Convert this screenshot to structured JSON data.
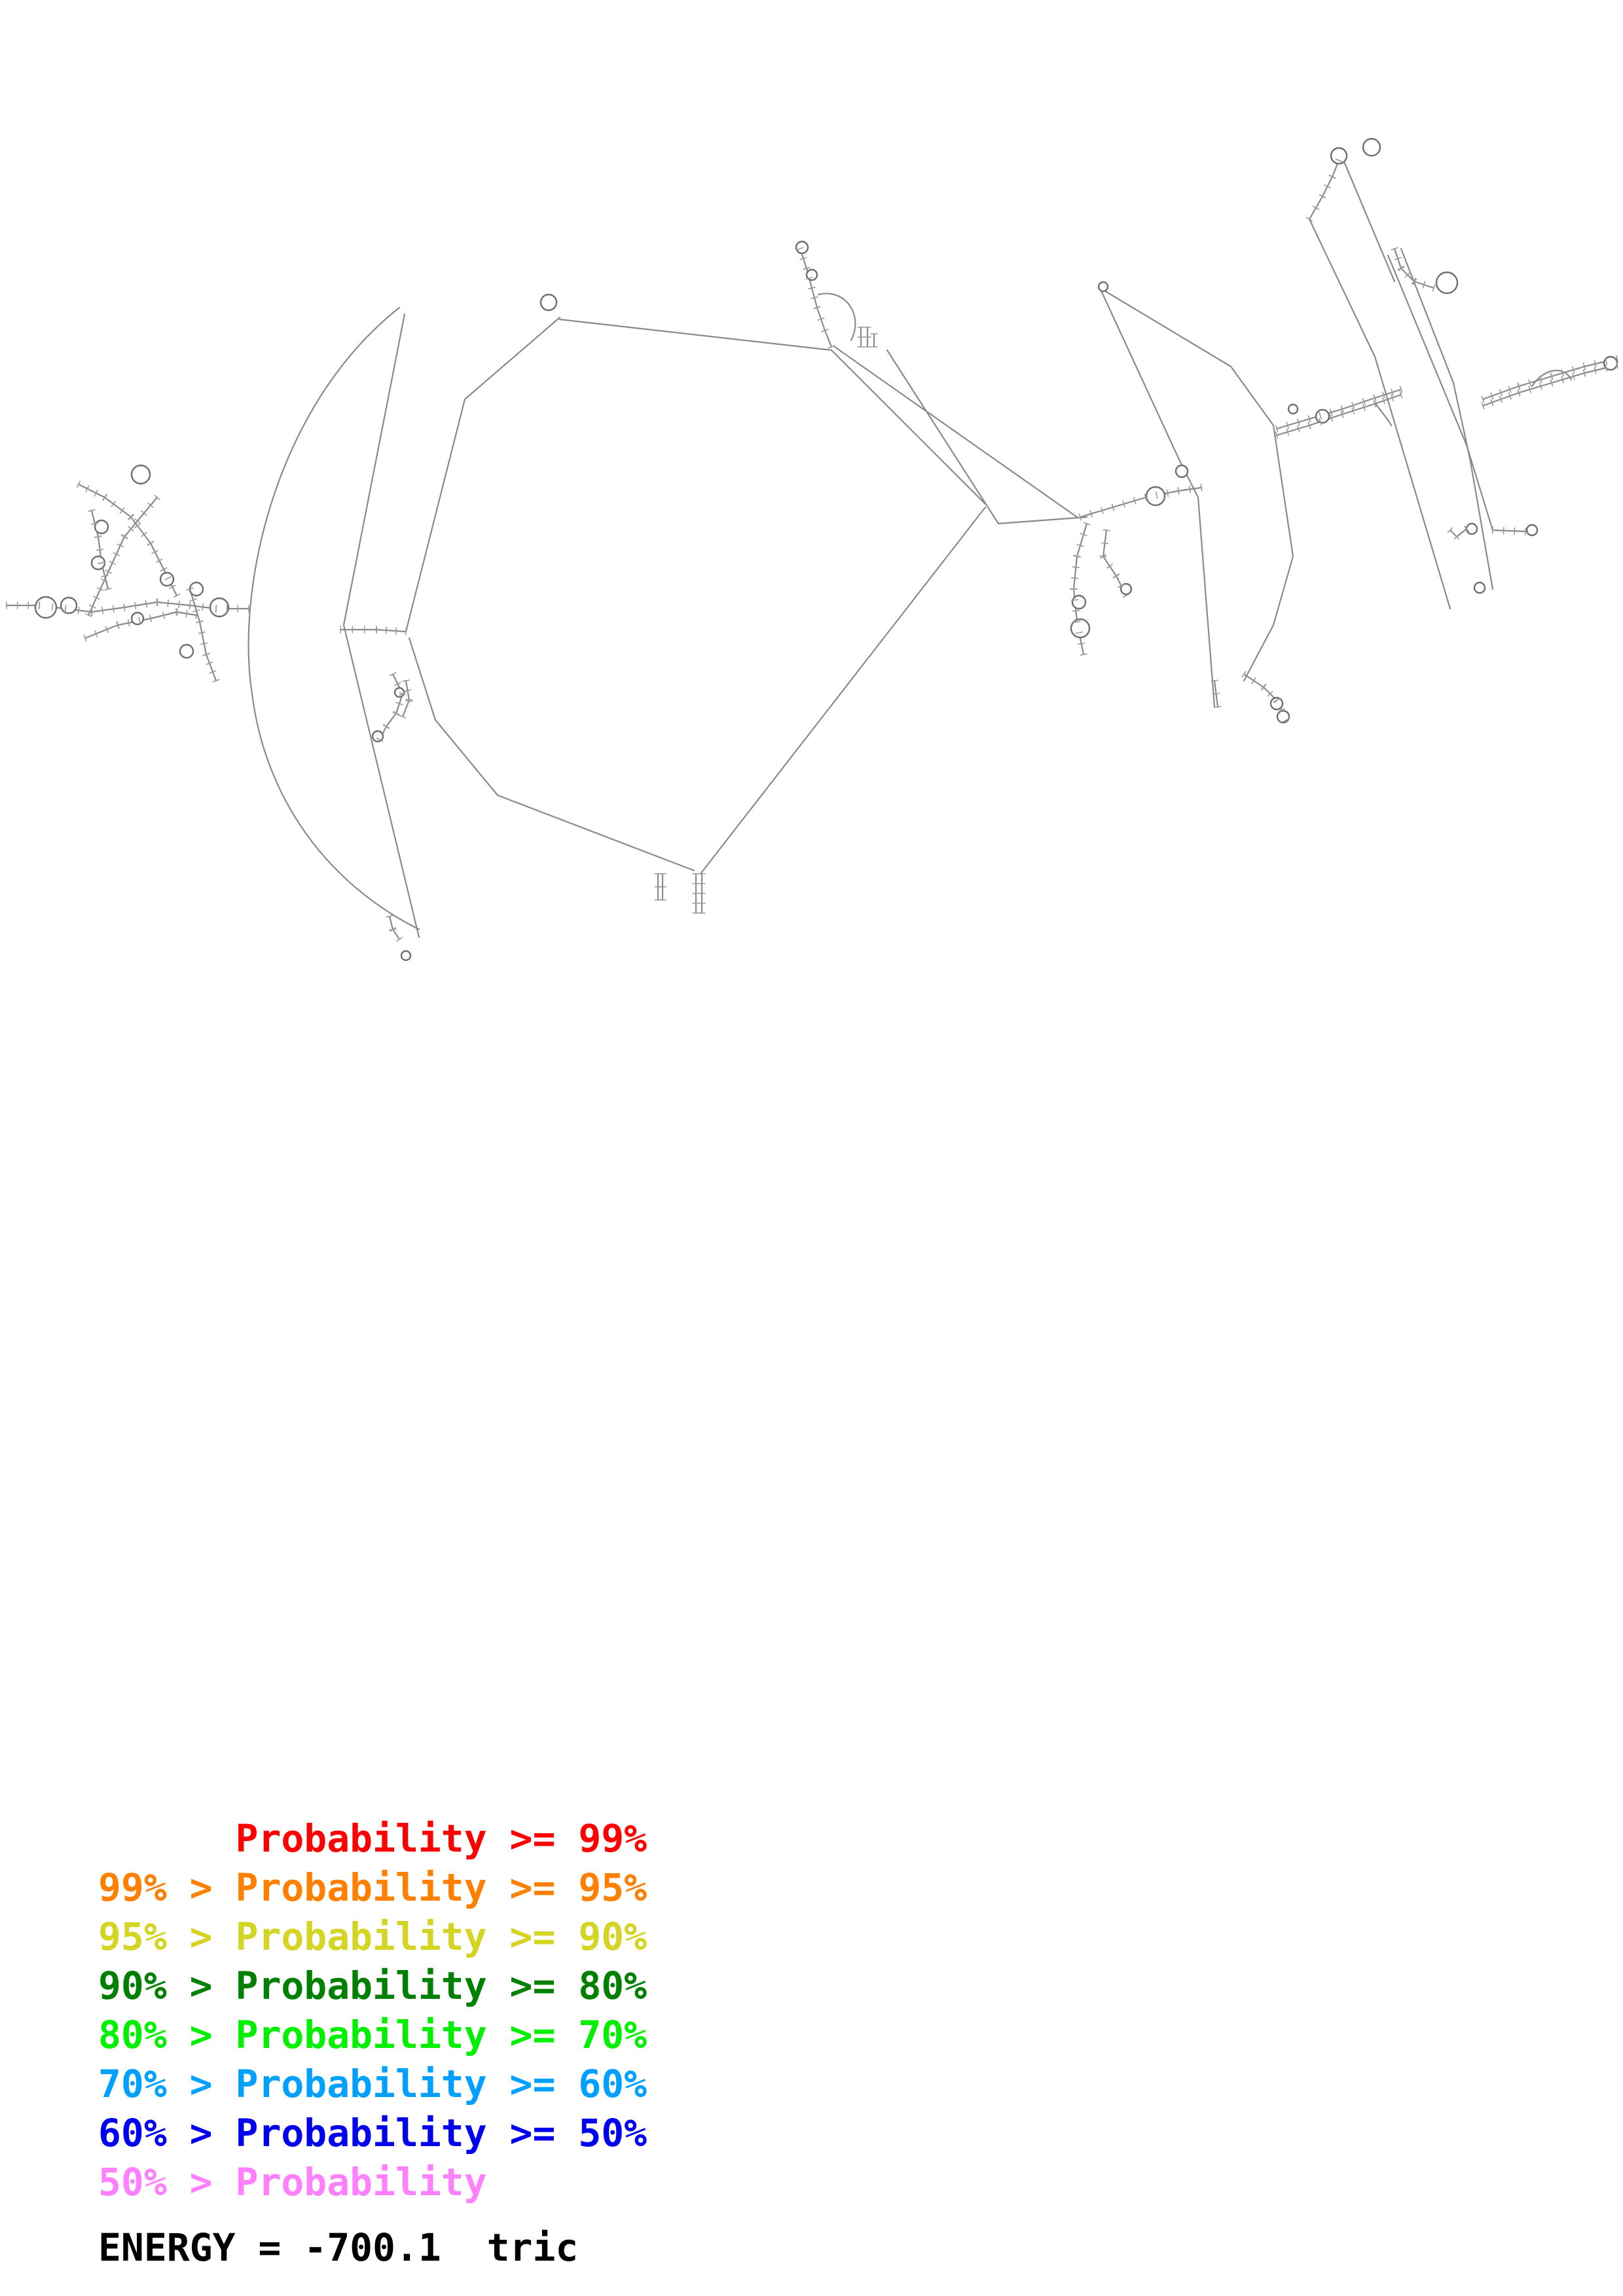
{
  "legend": [
    {
      "lower": "",
      "sep": "",
      "label": "Probability",
      "op": " >= ",
      "upper": "99%",
      "color": "#ff0000"
    },
    {
      "lower": "99%",
      "sep": " > ",
      "label": "Probability",
      "op": " >= ",
      "upper": "95%",
      "color": "#ff8000"
    },
    {
      "lower": "95%",
      "sep": " > ",
      "label": "Probability",
      "op": " >= ",
      "upper": "90%",
      "color": "#d4d422"
    },
    {
      "lower": "90%",
      "sep": " > ",
      "label": "Probability",
      "op": " >= ",
      "upper": "80%",
      "color": "#008000"
    },
    {
      "lower": "80%",
      "sep": " > ",
      "label": "Probability",
      "op": " >= ",
      "upper": "70%",
      "color": "#00f000"
    },
    {
      "lower": "70%",
      "sep": " > ",
      "label": "Probability",
      "op": " >= ",
      "upper": "60%",
      "color": "#00a0ff"
    },
    {
      "lower": "60%",
      "sep": " > ",
      "label": "Probability",
      "op": " >= ",
      "upper": "50%",
      "color": "#0000ee"
    },
    {
      "lower": "50%",
      "sep": " > ",
      "label": "Probability",
      "op": "",
      "upper": "",
      "color": "#ff80ff"
    }
  ],
  "energy": "ENERGY = -700.1  tric",
  "structure": {
    "line_color": "#8a8a8a"
  }
}
